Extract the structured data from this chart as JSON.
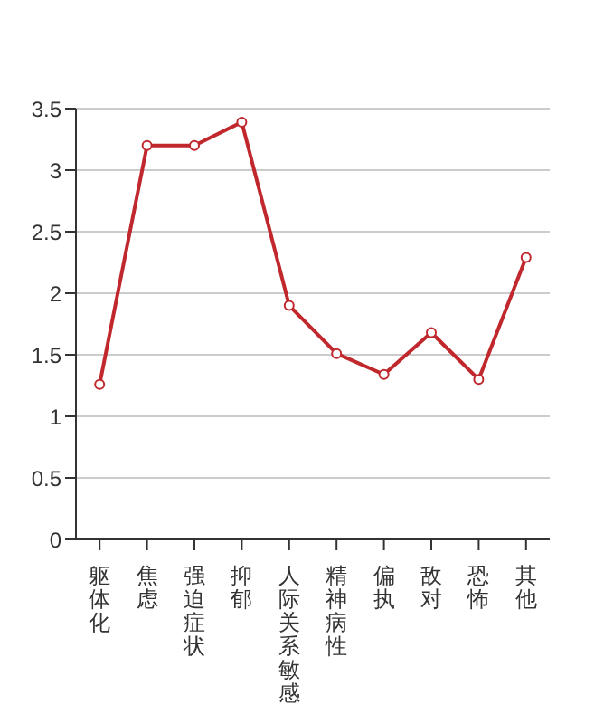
{
  "chart_data": {
    "type": "line",
    "categories": [
      "躯体化",
      "焦虑",
      "强迫症状",
      "抑郁",
      "人际关系敏感",
      "精神病性",
      "偏执",
      "敌对",
      "恐怖",
      "其他"
    ],
    "series": [
      {
        "color": "#c0282d",
        "values": [
          1.26,
          3.2,
          3.2,
          3.39,
          1.9,
          1.51,
          1.34,
          1.68,
          1.3,
          2.29
        ]
      }
    ],
    "ylim": [
      0,
      3.5
    ],
    "yticks": [
      0,
      0.5,
      1,
      1.5,
      2,
      2.5,
      3,
      3.5
    ],
    "grid": "y",
    "marker": "circle",
    "line_style": "solid",
    "legend": false
  }
}
